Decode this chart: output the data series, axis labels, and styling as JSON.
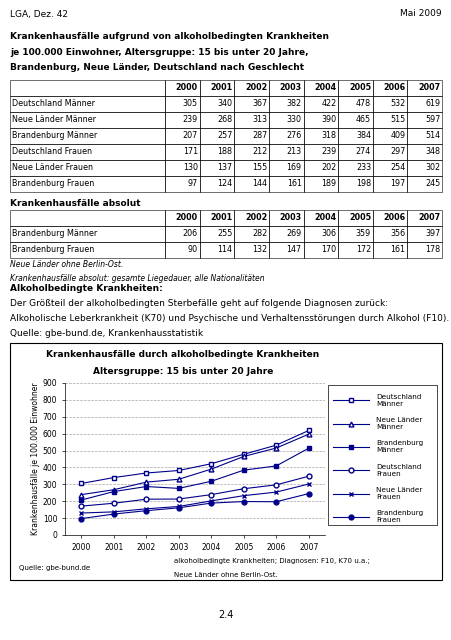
{
  "header_left": "LGA, Dez. 42",
  "header_right": "Mai 2009",
  "title1": "Krankenhausfälle aufgrund von alkoholbedingten Krankheiten",
  "title2": "je 100.000 Einwohner, Altersgruppe: 15 bis unter 20 Jahre,",
  "title3": "Brandenburg, Neue Länder, Deutschland nach Geschlecht",
  "table1_cols": [
    "",
    "2000",
    "2001",
    "2002",
    "2003",
    "2004",
    "2005",
    "2006",
    "2007"
  ],
  "table1_rows": [
    [
      "Deutschland Männer",
      "305",
      "340",
      "367",
      "382",
      "422",
      "478",
      "532",
      "619"
    ],
    [
      "Neue Länder Männer",
      "239",
      "268",
      "313",
      "330",
      "390",
      "465",
      "515",
      "597"
    ],
    [
      "Brandenburg Männer",
      "207",
      "257",
      "287",
      "276",
      "318",
      "384",
      "409",
      "514"
    ],
    [
      "Deutschland Frauen",
      "171",
      "188",
      "212",
      "213",
      "239",
      "274",
      "297",
      "348"
    ],
    [
      "Neue Länder Frauen",
      "130",
      "137",
      "155",
      "169",
      "202",
      "233",
      "254",
      "302"
    ],
    [
      "Brandenburg Frauen",
      "97",
      "124",
      "144",
      "161",
      "189",
      "198",
      "197",
      "245"
    ]
  ],
  "table2_title": "Krankenhausfälle absolut",
  "table2_rows": [
    [
      "Brandenburg Männer",
      "206",
      "255",
      "282",
      "269",
      "306",
      "359",
      "356",
      "397"
    ],
    [
      "Brandenburg Frauen",
      "90",
      "114",
      "132",
      "147",
      "170",
      "172",
      "161",
      "178"
    ]
  ],
  "note1": "Neue Länder ohne Berlin-Ost.",
  "note2": "Krankenhausfälle absolut: gesamte Liegedauer, alle Nationalitäten",
  "section_title": "Alkoholbedingte Krankheiten:",
  "section_text1": "Der Größteil der alkoholbedingten Sterbefälle geht auf folgende Diagnosen zurück:",
  "section_text2": "Alkoholische Leberkrankheit (K70) und Psychische und Verhaltensstörungen durch Alkohol (F10).",
  "source_text": "Quelle: gbe-bund.de, Krankenhausstatistik",
  "chart_title1": "Krankenhausfälle durch alkoholbedingte Krankheiten",
  "chart_title2": "Altersgruppe: 15 bis unter 20 Jahre",
  "chart_ylabel": "Krankenhausfälle je 100.000 Einwohner",
  "chart_note1": "Quelle: gbe-bund.de",
  "chart_note2": "alkoholbedingte Krankheiten; Diagnosen: F10, K70 u.a.;",
  "chart_note3": "Neue Länder ohne Berlin-Ost.",
  "years": [
    2000,
    2001,
    2002,
    2003,
    2004,
    2005,
    2006,
    2007
  ],
  "series": {
    "Deutschland Männer": [
      305,
      340,
      367,
      382,
      422,
      478,
      532,
      619
    ],
    "Neue Länder Männer": [
      239,
      268,
      313,
      330,
      390,
      465,
      515,
      597
    ],
    "Brandenburg Männer": [
      207,
      257,
      287,
      276,
      318,
      384,
      409,
      514
    ],
    "Deutschland Frauen": [
      171,
      188,
      212,
      213,
      239,
      274,
      297,
      348
    ],
    "Neue Länder Frauen": [
      130,
      137,
      155,
      169,
      202,
      233,
      254,
      302
    ],
    "Brandenburg Frauen": [
      97,
      124,
      144,
      161,
      189,
      198,
      197,
      245
    ]
  },
  "line_color": "#00008B",
  "page_num": "2.4",
  "ylim": [
    0,
    900
  ],
  "yticks": [
    0,
    100,
    200,
    300,
    400,
    500,
    600,
    700,
    800,
    900
  ]
}
